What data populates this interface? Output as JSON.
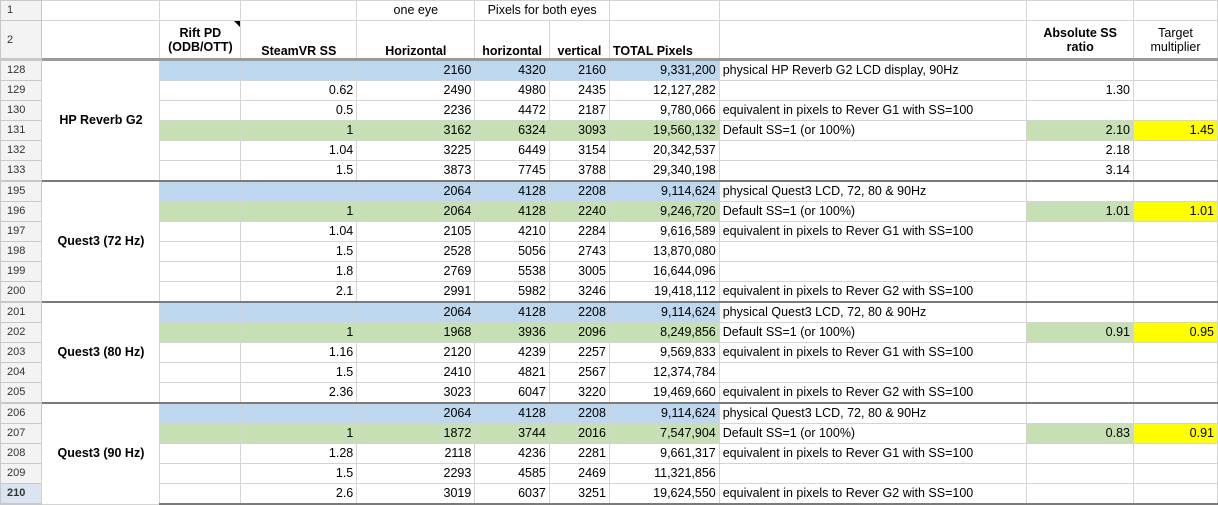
{
  "headers": {
    "one_eye": "one eye",
    "pixels_both": "Pixels for both eyes",
    "rift_pd_1": "Rift PD",
    "rift_pd_2": "(ODB/OTT)",
    "steamvr_ss": "SteamVR SS",
    "horizontal": "Horizontal",
    "horizontal_lc": "horizontal",
    "vertical": "vertical",
    "total": "TOTAL Pixels",
    "abs_ss_1": "Absolute SS",
    "abs_ss_2": "ratio",
    "target_1": "Target",
    "target_2": "multiplier"
  },
  "row_numbers": [
    "1",
    "2"
  ],
  "groups": [
    {
      "name": "HP Reverb G2",
      "rows": [
        {
          "rn": "128",
          "ss": "",
          "h": "2160",
          "bh": "4320",
          "bv": "2160",
          "total": "9,331,200",
          "note": "physical HP Reverb G2 LCD display, 90Hz",
          "abs": "",
          "tgt": "",
          "style": "blue"
        },
        {
          "rn": "129",
          "ss": "0.62",
          "h": "2490",
          "bh": "4980",
          "bv": "2435",
          "total": "12,127,282",
          "note": "",
          "abs": "1.30",
          "tgt": "",
          "style": ""
        },
        {
          "rn": "130",
          "ss": "0.5",
          "h": "2236",
          "bh": "4472",
          "bv": "2187",
          "total": "9,780,066",
          "note": "equivalent in pixels to Rever G1 with SS=100",
          "abs": "",
          "tgt": "",
          "style": ""
        },
        {
          "rn": "131",
          "ss": "1",
          "h": "3162",
          "bh": "6324",
          "bv": "3093",
          "total": "19,560,132",
          "note": "Default SS=1 (or 100%)",
          "abs": "2.10",
          "tgt": "1.45",
          "style": "green"
        },
        {
          "rn": "132",
          "ss": "1.04",
          "h": "3225",
          "bh": "6449",
          "bv": "3154",
          "total": "20,342,537",
          "note": "",
          "abs": "2.18",
          "tgt": "",
          "style": ""
        },
        {
          "rn": "133",
          "ss": "1.5",
          "h": "3873",
          "bh": "7745",
          "bv": "3788",
          "total": "29,340,198",
          "note": "",
          "abs": "3.14",
          "tgt": "",
          "style": ""
        }
      ]
    },
    {
      "name": "Quest3 (72 Hz)",
      "rows": [
        {
          "rn": "195",
          "ss": "",
          "h": "2064",
          "bh": "4128",
          "bv": "2208",
          "total": "9,114,624",
          "note": "physical Quest3 LCD, 72, 80 & 90Hz",
          "abs": "",
          "tgt": "",
          "style": "blue"
        },
        {
          "rn": "196",
          "ss": "1",
          "h": "2064",
          "bh": "4128",
          "bv": "2240",
          "total": "9,246,720",
          "note": "Default SS=1 (or 100%)",
          "abs": "1.01",
          "tgt": "1.01",
          "style": "green"
        },
        {
          "rn": "197",
          "ss": "1.04",
          "h": "2105",
          "bh": "4210",
          "bv": "2284",
          "total": "9,616,589",
          "note": "equivalent in pixels to Rever G1 with SS=100",
          "abs": "",
          "tgt": "",
          "style": ""
        },
        {
          "rn": "198",
          "ss": "1.5",
          "h": "2528",
          "bh": "5056",
          "bv": "2743",
          "total": "13,870,080",
          "note": "",
          "abs": "",
          "tgt": "",
          "style": ""
        },
        {
          "rn": "199",
          "ss": "1.8",
          "h": "2769",
          "bh": "5538",
          "bv": "3005",
          "total": "16,644,096",
          "note": "",
          "abs": "",
          "tgt": "",
          "style": ""
        },
        {
          "rn": "200",
          "ss": "2.1",
          "h": "2991",
          "bh": "5982",
          "bv": "3246",
          "total": "19,418,112",
          "note": "equivalent in pixels to Rever G2 with SS=100",
          "abs": "",
          "tgt": "",
          "style": ""
        }
      ]
    },
    {
      "name": "Quest3 (80 Hz)",
      "rows": [
        {
          "rn": "201",
          "ss": "",
          "h": "2064",
          "bh": "4128",
          "bv": "2208",
          "total": "9,114,624",
          "note": "physical Quest3 LCD, 72, 80 & 90Hz",
          "abs": "",
          "tgt": "",
          "style": "blue"
        },
        {
          "rn": "202",
          "ss": "1",
          "h": "1968",
          "bh": "3936",
          "bv": "2096",
          "total": "8,249,856",
          "note": "Default SS=1 (or 100%)",
          "abs": "0.91",
          "tgt": "0.95",
          "style": "green"
        },
        {
          "rn": "203",
          "ss": "1.16",
          "h": "2120",
          "bh": "4239",
          "bv": "2257",
          "total": "9,569,833",
          "note": "equivalent in pixels to Rever G1 with SS=100",
          "abs": "",
          "tgt": "",
          "style": ""
        },
        {
          "rn": "204",
          "ss": "1.5",
          "h": "2410",
          "bh": "4821",
          "bv": "2567",
          "total": "12,374,784",
          "note": "",
          "abs": "",
          "tgt": "",
          "style": ""
        },
        {
          "rn": "205",
          "ss": "2.36",
          "h": "3023",
          "bh": "6047",
          "bv": "3220",
          "total": "19,469,660",
          "note": "equivalent in pixels to Rever G2 with SS=100",
          "abs": "",
          "tgt": "",
          "style": ""
        }
      ]
    },
    {
      "name": "Quest3 (90 Hz)",
      "rows": [
        {
          "rn": "206",
          "ss": "",
          "h": "2064",
          "bh": "4128",
          "bv": "2208",
          "total": "9,114,624",
          "note": "physical Quest3 LCD, 72, 80 & 90Hz",
          "abs": "",
          "tgt": "",
          "style": "blue"
        },
        {
          "rn": "207",
          "ss": "1",
          "h": "1872",
          "bh": "3744",
          "bv": "2016",
          "total": "7,547,904",
          "note": "Default SS=1 (or 100%)",
          "abs": "0.83",
          "tgt": "0.91",
          "style": "green"
        },
        {
          "rn": "208",
          "ss": "1.28",
          "h": "2118",
          "bh": "4236",
          "bv": "2281",
          "total": "9,661,317",
          "note": "equivalent in pixels to Rever G1 with SS=100",
          "abs": "",
          "tgt": "",
          "style": ""
        },
        {
          "rn": "209",
          "ss": "1.5",
          "h": "2293",
          "bh": "4585",
          "bv": "2469",
          "total": "11,321,856",
          "note": "",
          "abs": "",
          "tgt": "",
          "style": ""
        },
        {
          "rn": "210",
          "ss": "2.6",
          "h": "3019",
          "bh": "6037",
          "bv": "3251",
          "total": "19,624,550",
          "note": "equivalent in pixels to Rever G2 with SS=100",
          "abs": "",
          "tgt": "",
          "style": ""
        }
      ]
    }
  ],
  "colors": {
    "blue": "#bdd7ee",
    "green": "#c6e0b4",
    "yellow": "#ffff00"
  }
}
